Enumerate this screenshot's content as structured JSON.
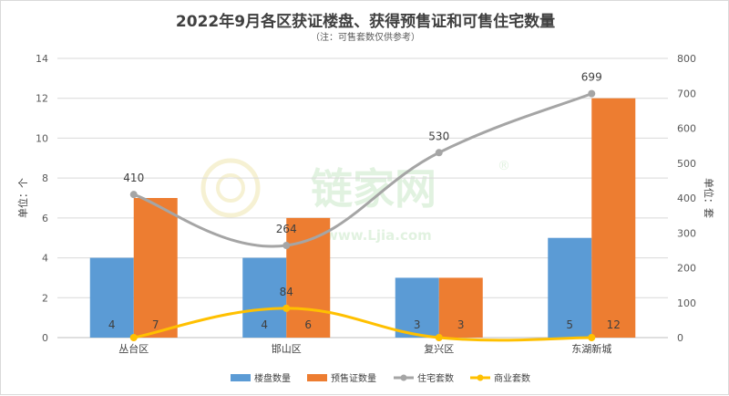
{
  "chart_data": {
    "type": "bar",
    "title": "2022年9月各区获证楼盘、获得预售证和可售住宅数量",
    "subtitle": "（注：可售套数仅供参考）",
    "categories": [
      "丛台区",
      "邯山区",
      "复兴区",
      "东湖新城"
    ],
    "ylabel_left": "单位：个",
    "ylabel_right": "单位：套",
    "ylim_left": [
      0,
      14
    ],
    "ylim_right": [
      0,
      800
    ],
    "yticks_left": [
      0,
      2,
      4,
      6,
      8,
      10,
      12,
      14
    ],
    "yticks_right": [
      0,
      100,
      200,
      300,
      400,
      500,
      600,
      700,
      800
    ],
    "grid": true,
    "legend_position": "bottom",
    "series": [
      {
        "name": "楼盘数量",
        "type": "bar",
        "axis": "left",
        "color": "#5b9bd5",
        "values": [
          4,
          4,
          3,
          5
        ]
      },
      {
        "name": "预售证数量",
        "type": "bar",
        "axis": "left",
        "color": "#ed7d31",
        "values": [
          7,
          6,
          3,
          12
        ]
      },
      {
        "name": "住宅套数",
        "type": "line",
        "axis": "right",
        "color": "#a5a5a5",
        "values": [
          410,
          264,
          530,
          699
        ]
      },
      {
        "name": "商业套数",
        "type": "line",
        "axis": "right",
        "color": "#ffc000",
        "values": [
          0,
          84,
          0,
          0
        ]
      }
    ],
    "line_labels": {
      "住宅套数": [
        "410",
        "264",
        "530",
        "699"
      ],
      "商业套数": [
        "",
        "84",
        "",
        ""
      ]
    }
  },
  "watermark": {
    "brand": "链家网",
    "url": "www.Ljia.com",
    "mark": "®"
  }
}
